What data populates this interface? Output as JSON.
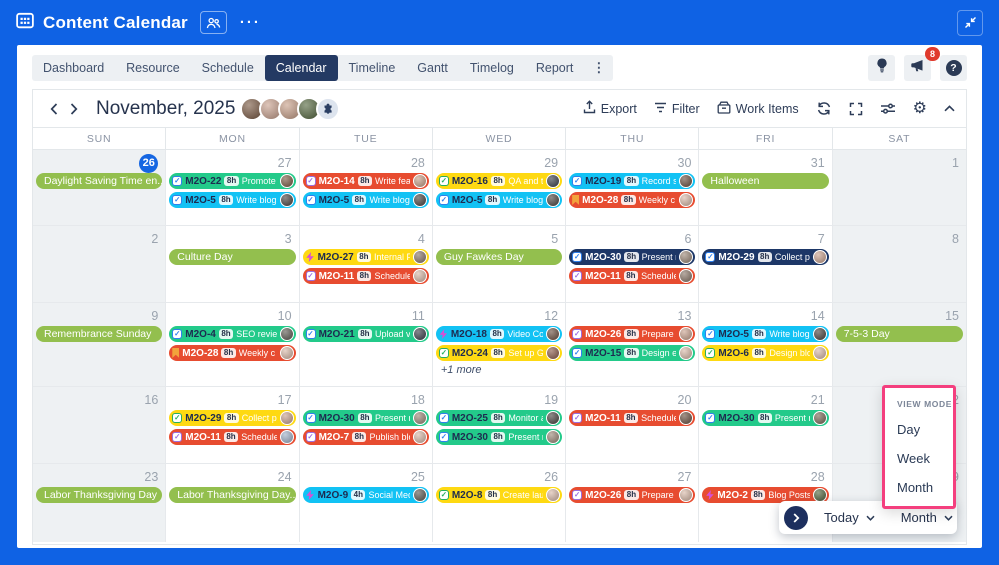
{
  "topbar": {
    "title": "Content Calendar",
    "more_label": "···"
  },
  "tabs": {
    "items": [
      "Dashboard",
      "Resource",
      "Schedule",
      "Calendar",
      "Timeline",
      "Gantt",
      "Timelog",
      "Report"
    ],
    "active_index": 3,
    "overflow_label": "⋮",
    "notification_count": "8"
  },
  "toolbar": {
    "title": "November, 2025",
    "export_label": "Export",
    "filter_label": "Filter",
    "work_items_label": "Work Items",
    "avatar_colors": [
      "#7b5a43",
      "#caa28f",
      "#c9a089",
      "#55683f"
    ]
  },
  "colors": {
    "blue": "#0f62e4",
    "active_tab": "#243a63",
    "badge_red": "#e03a2c",
    "today_blue": "#1566e2",
    "holiday_green": "#93bf4e",
    "task_green": "#23ca8a",
    "task_cyan": "#12c2f4",
    "task_red": "#e74c30",
    "task_yellow": "#fed912",
    "task_navy": "#1d3767",
    "accent_pink": "#f43f7e",
    "footer_navy": "#1d2f5e"
  },
  "calendar": {
    "day_headers": [
      "SUN",
      "MON",
      "TUE",
      "WED",
      "THU",
      "FRI",
      "SAT"
    ],
    "icon_styles": {
      "check-blue": {
        "shape": "check",
        "color": "#2f80ed"
      },
      "check-green": {
        "shape": "check",
        "color": "#27ae60"
      },
      "check-purple": {
        "shape": "check",
        "color": "#9b6fe0"
      },
      "bookmark": {
        "shape": "bookmark",
        "color": "#f2a33c"
      },
      "bolt": {
        "shape": "bolt",
        "color": "#d84ed4"
      }
    },
    "weeks": [
      {
        "days": [
          {
            "date": "26",
            "today": true,
            "events": [
              {
                "t": "holiday",
                "label": "Daylight Saving Time en..."
              }
            ]
          },
          {
            "date": "27",
            "events": [
              {
                "t": "task",
                "c": "green",
                "i": "check-blue",
                "id": "M2O-22",
                "h": "8h",
                "txt": "Promote",
                "av": "#7b5a43"
              },
              {
                "t": "task",
                "c": "cyan",
                "i": "check-blue",
                "id": "M2O-5",
                "h": "8h",
                "txt": "Write blog",
                "av": "#4a4440"
              }
            ]
          },
          {
            "date": "28",
            "events": [
              {
                "t": "task",
                "c": "red",
                "i": "check-purple",
                "id": "M2O-14",
                "h": "8h",
                "txt": "Write feat",
                "av": "#c9a089"
              },
              {
                "t": "task",
                "c": "cyan",
                "i": "check-blue",
                "id": "M2O-5",
                "h": "8h",
                "txt": "Write blog",
                "av": "#4a4440"
              }
            ]
          },
          {
            "date": "29",
            "events": [
              {
                "t": "task",
                "c": "yellow",
                "i": "check-green",
                "id": "M2O-16",
                "h": "8h",
                "txt": "QA and te",
                "av": "#3a3f4a"
              },
              {
                "t": "task",
                "c": "cyan",
                "i": "check-blue",
                "id": "M2O-5",
                "h": "8h",
                "txt": "Write blog",
                "av": "#4a4440"
              }
            ]
          },
          {
            "date": "30",
            "events": [
              {
                "t": "task",
                "c": "cyan",
                "i": "check-blue",
                "id": "M2O-19",
                "h": "8h",
                "txt": "Record sh",
                "av": "#6b4f3f"
              },
              {
                "t": "task",
                "c": "red",
                "i": "bookmark",
                "id": "M2O-28",
                "h": "8h",
                "txt": "Weekly c",
                "av": "#d9b9a8"
              }
            ]
          },
          {
            "date": "31",
            "events": [
              {
                "t": "holiday",
                "label": "Halloween"
              }
            ]
          },
          {
            "date": "1",
            "events": []
          }
        ]
      },
      {
        "days": [
          {
            "date": "2",
            "events": []
          },
          {
            "date": "3",
            "events": [
              {
                "t": "holiday",
                "label": "Culture Day"
              }
            ]
          },
          {
            "date": "4",
            "events": [
              {
                "t": "task",
                "c": "yellow",
                "i": "bolt",
                "id": "M2O-27",
                "h": "8h",
                "txt": "Internal P",
                "av": "#8a7668"
              },
              {
                "t": "task",
                "c": "red",
                "i": "check-purple",
                "id": "M2O-11",
                "h": "8h",
                "txt": "Schedule",
                "av": "#d9b9a8"
              }
            ]
          },
          {
            "date": "5",
            "events": [
              {
                "t": "holiday",
                "label": "Guy Fawkes Day"
              }
            ]
          },
          {
            "date": "6",
            "events": [
              {
                "t": "task",
                "c": "navy",
                "i": "check-blue",
                "id": "M2O-30",
                "h": "8h",
                "txt": "Present n",
                "av": "#9c8878"
              },
              {
                "t": "task",
                "c": "red",
                "i": "check-purple",
                "id": "M2O-11",
                "h": "8h",
                "txt": "Schedule",
                "av": "#8a7668"
              }
            ]
          },
          {
            "date": "7",
            "events": [
              {
                "t": "task",
                "c": "navy",
                "i": "check-blue",
                "id": "M2O-29",
                "h": "8h",
                "txt": "Collect p",
                "av": "#caa28f"
              }
            ]
          },
          {
            "date": "8",
            "events": []
          }
        ]
      },
      {
        "days": [
          {
            "date": "9",
            "events": [
              {
                "t": "holiday",
                "label": "Remembrance Sunday"
              }
            ]
          },
          {
            "date": "10",
            "events": [
              {
                "t": "task",
                "c": "green",
                "i": "check-blue",
                "id": "M2O-4",
                "h": "8h",
                "txt": "SEO review",
                "av": "#5d5a52"
              },
              {
                "t": "task",
                "c": "red",
                "i": "bookmark",
                "id": "M2O-28",
                "h": "8h",
                "txt": "Weekly c",
                "av": "#d9b9a8"
              }
            ]
          },
          {
            "date": "11",
            "events": [
              {
                "t": "task",
                "c": "green",
                "i": "check-blue",
                "id": "M2O-21",
                "h": "8h",
                "txt": "Upload vi",
                "av": "#3a3f4a"
              }
            ]
          },
          {
            "date": "12",
            "more": "+1 more",
            "events": [
              {
                "t": "task",
                "c": "cyan",
                "i": "bolt",
                "id": "M2O-18",
                "h": "8h",
                "txt": "Video Co",
                "av": "#6b4f3f"
              },
              {
                "t": "task",
                "c": "yellow",
                "i": "check-green",
                "id": "M2O-24",
                "h": "8h",
                "txt": "Set up Go",
                "av": "#8a5a4a"
              }
            ]
          },
          {
            "date": "13",
            "events": [
              {
                "t": "task",
                "c": "red",
                "i": "check-purple",
                "id": "M2O-26",
                "h": "8h",
                "txt": "Prepare p",
                "av": "#caa28f"
              },
              {
                "t": "task",
                "c": "green",
                "i": "check-blue",
                "id": "M2O-15",
                "h": "8h",
                "txt": "Design en",
                "av": "#d9b9a8"
              }
            ]
          },
          {
            "date": "14",
            "events": [
              {
                "t": "task",
                "c": "cyan",
                "i": "check-blue",
                "id": "M2O-5",
                "h": "8h",
                "txt": "Write blog",
                "av": "#4a4440"
              },
              {
                "t": "task",
                "c": "yellow",
                "i": "check-green",
                "id": "M2O-6",
                "h": "8h",
                "txt": "Design blo",
                "av": "#d9b9a8"
              }
            ]
          },
          {
            "date": "15",
            "events": [
              {
                "t": "holiday",
                "label": "7-5-3 Day"
              }
            ]
          }
        ]
      },
      {
        "days": [
          {
            "date": "16",
            "events": []
          },
          {
            "date": "17",
            "events": [
              {
                "t": "task",
                "c": "yellow",
                "i": "check-green",
                "id": "M2O-29",
                "h": "8h",
                "txt": "Collect p",
                "av": "#caa28f"
              },
              {
                "t": "task",
                "c": "red",
                "i": "check-purple",
                "id": "M2O-11",
                "h": "8h",
                "txt": "Schedule",
                "av": "#9fb0c8"
              }
            ]
          },
          {
            "date": "18",
            "events": [
              {
                "t": "task",
                "c": "green",
                "i": "check-blue",
                "id": "M2O-30",
                "h": "8h",
                "txt": "Present n",
                "av": "#9c8878"
              },
              {
                "t": "task",
                "c": "red",
                "i": "check-purple",
                "id": "M2O-7",
                "h": "8h",
                "txt": "Publish blo",
                "av": "#d9b9a8"
              }
            ]
          },
          {
            "date": "19",
            "events": [
              {
                "t": "task",
                "c": "green",
                "i": "check-blue",
                "id": "M2O-25",
                "h": "8h",
                "txt": "Monitor a",
                "av": "#4a4440"
              },
              {
                "t": "task",
                "c": "green",
                "i": "check-blue",
                "id": "M2O-30",
                "h": "8h",
                "txt": "Present n",
                "av": "#9c8878"
              }
            ]
          },
          {
            "date": "20",
            "events": [
              {
                "t": "task",
                "c": "red",
                "i": "check-purple",
                "id": "M2O-11",
                "h": "8h",
                "txt": "Schedule",
                "av": "#6b4f3f"
              }
            ]
          },
          {
            "date": "21",
            "events": [
              {
                "t": "task",
                "c": "green",
                "i": "check-blue",
                "id": "M2O-30",
                "h": "8h",
                "txt": "Present n",
                "av": "#7a6a58"
              }
            ]
          },
          {
            "date": "22",
            "events": []
          }
        ]
      },
      {
        "days": [
          {
            "date": "23",
            "events": [
              {
                "t": "holiday",
                "label": "Labor Thanksgiving Day"
              }
            ]
          },
          {
            "date": "24",
            "events": [
              {
                "t": "holiday",
                "label": "Labor Thanksgiving Day..."
              }
            ]
          },
          {
            "date": "25",
            "events": [
              {
                "t": "task",
                "c": "cyan",
                "i": "bolt",
                "id": "M2O-9",
                "h": "4h",
                "txt": "Social Med",
                "av": "#5d5a52"
              }
            ]
          },
          {
            "date": "26",
            "events": [
              {
                "t": "task",
                "c": "yellow",
                "i": "check-green",
                "id": "M2O-8",
                "h": "8h",
                "txt": "Create lau",
                "av": "#d9b9a8"
              }
            ]
          },
          {
            "date": "27",
            "events": [
              {
                "t": "task",
                "c": "red",
                "i": "check-purple",
                "id": "M2O-26",
                "h": "8h",
                "txt": "Prepare p",
                "av": "#d9b9a8"
              }
            ]
          },
          {
            "date": "28",
            "events": [
              {
                "t": "task",
                "c": "red",
                "i": "bolt",
                "id": "M2O-2",
                "h": "8h",
                "txt": "Blog Posts",
                "av": "#55683f"
              }
            ]
          },
          {
            "date": "29",
            "events": []
          }
        ]
      }
    ]
  },
  "view_mode_popup": {
    "label": "VIEW MODE",
    "options": [
      "Day",
      "Week",
      "Month"
    ]
  },
  "footer_bar": {
    "today_label": "Today",
    "mode_label": "Month"
  }
}
